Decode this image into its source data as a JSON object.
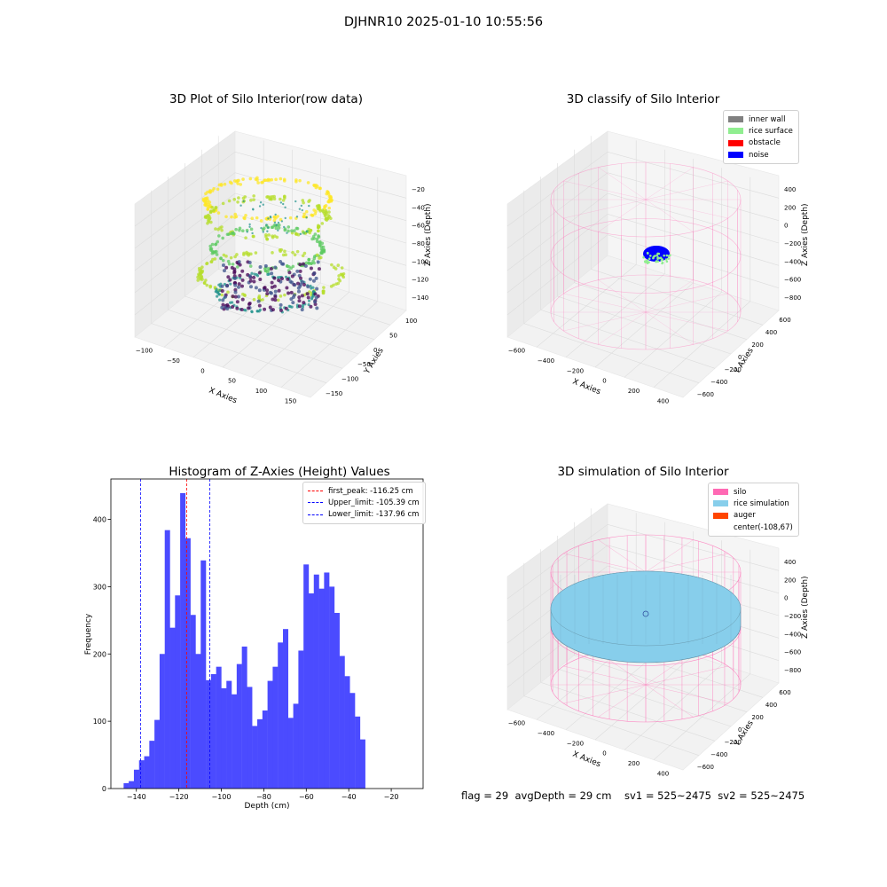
{
  "suptitle": "DJHNR10 2025-01-10 10:55:56",
  "plots": {
    "raw": {
      "title": "3D Plot of Silo Interior(row data)",
      "x_label": "X Axies",
      "y_label": "Y Axies",
      "z_label": "Z Axies (Depth)",
      "x_ticks": [
        "−100",
        "−50",
        "0",
        "50",
        "100",
        "150"
      ],
      "y_ticks": [
        "100",
        "50",
        "0",
        "−50",
        "−100",
        "−150"
      ],
      "z_ticks": [
        "−20",
        "−40",
        "−60",
        "−80",
        "−100",
        "−120",
        "−140"
      ]
    },
    "classify": {
      "title": "3D classify of Silo Interior",
      "x_label": "X Axies",
      "y_label": "Y Axies",
      "z_label": "Z Axies (Depth)",
      "x_ticks": [
        "−600",
        "−400",
        "−200",
        "0",
        "200",
        "400"
      ],
      "y_ticks": [
        "600",
        "400",
        "200",
        "0",
        "−200",
        "−400",
        "−600"
      ],
      "z_ticks": [
        "400",
        "200",
        "0",
        "−200",
        "−400",
        "−600",
        "−800"
      ],
      "legend": [
        {
          "label": "inner wall",
          "color": "#808080"
        },
        {
          "label": "rice surface",
          "color": "#90ee90"
        },
        {
          "label": "obstacle",
          "color": "#ff0000"
        },
        {
          "label": "noise",
          "color": "#0000ff"
        }
      ]
    },
    "simulation": {
      "title": "3D simulation of Silo Interior",
      "x_label": "X Axies",
      "y_label": "Y Axies",
      "z_label": "Z Axies (Depth)",
      "x_ticks": [
        "−600",
        "−400",
        "−200",
        "0",
        "200",
        "400"
      ],
      "y_ticks": [
        "600",
        "400",
        "200",
        "0",
        "−200",
        "−400",
        "−600"
      ],
      "z_ticks": [
        "400",
        "200",
        "0",
        "−200",
        "−400",
        "−600",
        "−800"
      ],
      "legend": [
        {
          "label": "silo",
          "color": "#ff69b4"
        },
        {
          "label": "rice simulation",
          "color": "#87ceeb"
        },
        {
          "label": "auger",
          "color": "#ff4500"
        },
        {
          "label": "center(-108,67)",
          "color": ""
        }
      ]
    }
  },
  "footer": {
    "text": "flag = 29  avgDepth = 29 cm    sv1 = 525~2475  sv2 = 525~2475"
  },
  "colors": {
    "bar": "#4b4bff",
    "first_peak_line": "#ff0000",
    "limit_lines": "#0000ff",
    "silo_wire": "#ff69b4",
    "rice_surface": "#87ceeb"
  },
  "chart_data": {
    "type": "bar",
    "title": "Histogram of Z-Axies (Height) Values",
    "xlabel": "Depth (cm)",
    "ylabel": "Frequency",
    "xlim": [
      -152,
      -5
    ],
    "ylim": [
      0,
      460
    ],
    "xticks": [
      -140,
      -120,
      -100,
      -80,
      -60,
      -40,
      -20
    ],
    "yticks": [
      0,
      100,
      200,
      300,
      400
    ],
    "bin_left": -146,
    "bin_width": 2.42,
    "values": [
      8,
      11,
      28,
      42,
      48,
      71,
      102,
      200,
      384,
      239,
      287,
      439,
      372,
      258,
      200,
      339,
      161,
      170,
      181,
      149,
      160,
      140,
      185,
      211,
      151,
      93,
      103,
      116,
      160,
      181,
      217,
      237,
      105,
      126,
      205,
      333,
      290,
      318,
      297,
      321,
      300,
      261,
      197,
      167,
      142,
      107,
      73
    ],
    "vlines": [
      {
        "x": -116.25,
        "label": "first_peak: -116.25 cm",
        "color": "#ff0000"
      },
      {
        "x": -105.39,
        "label": "Upper_limit: -105.39 cm",
        "color": "#0000ff"
      },
      {
        "x": -137.96,
        "label": "Lower_limit: -137.96 cm",
        "color": "#0000ff"
      }
    ],
    "legend_position": "top-right"
  }
}
